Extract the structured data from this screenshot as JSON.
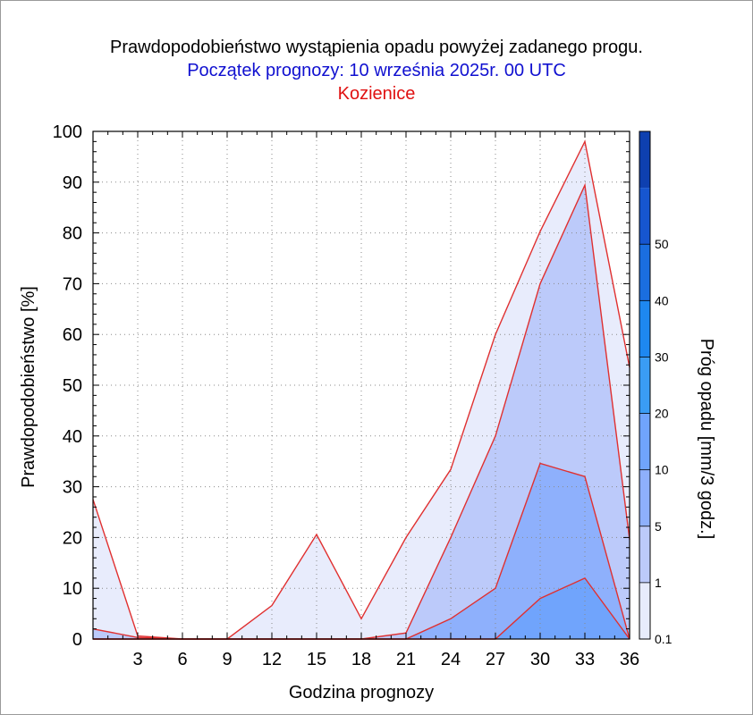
{
  "title": "Prawdopodobieństwo wystąpienia opadu powyżej zadanego progu.",
  "subtitle": "Początek prognozy: 10 września 2025r. 00 UTC",
  "location": "Kozienice",
  "colors": {
    "title": "#000000",
    "subtitle": "#1010d0",
    "location": "#e01010",
    "series_line": "#e03030"
  },
  "chart_data": {
    "type": "area",
    "xlabel": "Godzina prognozy",
    "ylabel": "Prawdopodobieństwo [%]",
    "xlim": [
      0,
      36
    ],
    "ylim": [
      0,
      100
    ],
    "x": [
      0,
      3,
      6,
      9,
      12,
      15,
      18,
      21,
      24,
      27,
      30,
      33,
      36
    ],
    "x_ticks": [
      3,
      6,
      9,
      12,
      15,
      18,
      21,
      24,
      27,
      30,
      33,
      36
    ],
    "y_ticks": [
      0,
      10,
      20,
      30,
      40,
      50,
      60,
      70,
      80,
      90,
      100
    ],
    "grid": true,
    "series": [
      {
        "threshold": 0.1,
        "color": "#e8ecfc",
        "values": [
          27.5,
          0.6,
          0,
          0,
          6.6,
          20.6,
          4.0,
          20.0,
          33.4,
          60.0,
          80.3,
          98.0,
          53.5
        ]
      },
      {
        "threshold": 1,
        "color": "#bccafa",
        "values": [
          2.0,
          0.3,
          0,
          0,
          0,
          0,
          0,
          1.2,
          20.0,
          40.0,
          70.0,
          89.4,
          19.6
        ]
      },
      {
        "threshold": 5,
        "color": "#8eb0fc",
        "values": [
          0,
          0,
          0,
          0,
          0,
          0,
          0,
          0,
          4.0,
          10.0,
          34.6,
          32.0,
          0
        ]
      },
      {
        "threshold": 10,
        "color": "#70a4fc",
        "values": [
          0,
          0,
          0,
          0,
          0,
          0,
          0,
          0,
          0,
          0,
          8.0,
          12.0,
          0
        ]
      }
    ],
    "colorbar": {
      "label": "Próg opadu [mm/3 godz.]",
      "tick_labels": [
        "0.1",
        "1",
        "5",
        "10",
        "20",
        "30",
        "40",
        "50"
      ],
      "bands": [
        "#e8ecfc",
        "#bccafa",
        "#8eb0fc",
        "#70a4fc",
        "#3a9cf4",
        "#1e88f0",
        "#1a6ee0",
        "#1656d0",
        "#0e40b0"
      ]
    }
  }
}
